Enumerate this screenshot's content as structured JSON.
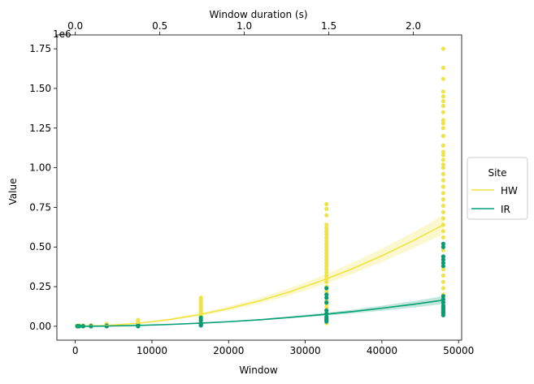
{
  "chart_data": {
    "type": "scatter",
    "xlabel": "Window",
    "ylabel": "Value",
    "x2label": "Window duration (s)",
    "offset_text": "1e6",
    "xlim": [
      -2400,
      50400
    ],
    "ylim": [
      -87500,
      1837500
    ],
    "x2lim": [
      -0.109,
      2.286
    ],
    "xticks": [
      0,
      10000,
      20000,
      30000,
      40000,
      50000
    ],
    "x2ticks": [
      0.0,
      0.5,
      1.0,
      1.5,
      2.0
    ],
    "yticks": [
      0.0,
      0.25,
      0.5,
      0.75,
      1.0,
      1.25,
      1.5,
      1.75
    ],
    "xtick_labels": [
      "0",
      "10000",
      "20000",
      "30000",
      "40000",
      "50000"
    ],
    "x2tick_labels": [
      "0.0",
      "0.5",
      "1.0",
      "1.5",
      "2.0"
    ],
    "ytick_labels": [
      "0.00",
      "0.25",
      "0.50",
      "0.75",
      "1.00",
      "1.25",
      "1.50",
      "1.75"
    ],
    "grid": false,
    "legend": {
      "title": "Site",
      "placement": "outside-right"
    },
    "series": [
      {
        "name": "HW",
        "color": "#f0e442",
        "points": {
          "256": [
            0,
            1000,
            2000,
            3000,
            4000
          ],
          "512": [
            0,
            1500,
            2500,
            4000
          ],
          "1024": [
            0,
            1000,
            2500,
            4000,
            5000
          ],
          "2048": [
            0,
            1500,
            3000,
            5000,
            7000
          ],
          "4096": [
            0,
            2000,
            5000,
            8000,
            12000,
            15000
          ],
          "8192": [
            0,
            5000,
            10000,
            15000,
            20000,
            25000,
            30000,
            40000
          ],
          "16384": [
            10000,
            20000,
            30000,
            40000,
            50000,
            60000,
            70000,
            80000,
            90000,
            100000,
            110000,
            120000,
            130000,
            140000,
            150000,
            160000,
            170000,
            180000
          ],
          "32768": [
            20000,
            40000,
            60000,
            80000,
            100000,
            120000,
            140000,
            160000,
            180000,
            200000,
            220000,
            250000,
            280000,
            300000,
            320000,
            340000,
            360000,
            380000,
            400000,
            420000,
            440000,
            460000,
            480000,
            500000,
            520000,
            540000,
            560000,
            580000,
            600000,
            620000,
            640000,
            700000,
            740000,
            770000
          ],
          "48000": [
            90000,
            110000,
            130000,
            160000,
            200000,
            240000,
            280000,
            320000,
            360000,
            400000,
            440000,
            480000,
            520000,
            560000,
            600000,
            640000,
            680000,
            720000,
            760000,
            800000,
            840000,
            880000,
            920000,
            960000,
            1000000,
            1020000,
            1050000,
            1080000,
            1100000,
            1140000,
            1200000,
            1250000,
            1280000,
            1300000,
            1350000,
            1390000,
            1420000,
            1450000,
            1480000,
            1560000,
            1630000,
            1750000
          ]
        },
        "fit": {
          "x": [
            0,
            4000,
            8000,
            12000,
            16000,
            20000,
            24000,
            28000,
            32000,
            36000,
            40000,
            44000,
            48000
          ],
          "y": [
            0,
            5000,
            18000,
            40000,
            72000,
            112000,
            160000,
            218000,
            285000,
            360000,
            445000,
            538000,
            640000
          ],
          "lower": [
            0,
            4000,
            15000,
            35000,
            63000,
            98000,
            143000,
            195000,
            258000,
            328000,
            405000,
            490000,
            580000
          ],
          "upper": [
            0,
            6000,
            22000,
            46000,
            80000,
            125000,
            178000,
            242000,
            315000,
            397000,
            490000,
            590000,
            700000
          ]
        }
      },
      {
        "name": "IR",
        "color": "#009e73",
        "points": {
          "256": [
            0,
            500,
            1000
          ],
          "512": [
            0,
            500,
            1000
          ],
          "1024": [
            0,
            500,
            1000,
            1500
          ],
          "2048": [
            0,
            500,
            1000,
            2000
          ],
          "4096": [
            0,
            1000,
            2000,
            3000,
            4000
          ],
          "8192": [
            0,
            2000,
            4000,
            6000,
            8000
          ],
          "16384": [
            5000,
            10000,
            15000,
            20000,
            40000,
            55000
          ],
          "32768": [
            30000,
            40000,
            50000,
            60000,
            80000,
            100000,
            150000,
            180000,
            200000,
            240000
          ],
          "48000": [
            70000,
            80000,
            90000,
            100000,
            110000,
            120000,
            130000,
            150000,
            170000,
            190000,
            380000,
            400000,
            420000,
            440000,
            500000,
            520000
          ]
        },
        "fit": {
          "x": [
            0,
            4000,
            8000,
            12000,
            16000,
            20000,
            24000,
            28000,
            32000,
            36000,
            40000,
            44000,
            48000
          ],
          "y": [
            0,
            1500,
            5000,
            11000,
            19000,
            29000,
            41000,
            56000,
            73000,
            92000,
            114000,
            138000,
            165000
          ],
          "lower": [
            0,
            1000,
            4000,
            9500,
            17000,
            26500,
            37000,
            50000,
            64000,
            80000,
            98000,
            118000,
            140000
          ],
          "upper": [
            0,
            2000,
            6000,
            12500,
            21000,
            31500,
            45000,
            62000,
            82000,
            104000,
            130000,
            158000,
            190000
          ]
        }
      }
    ]
  }
}
